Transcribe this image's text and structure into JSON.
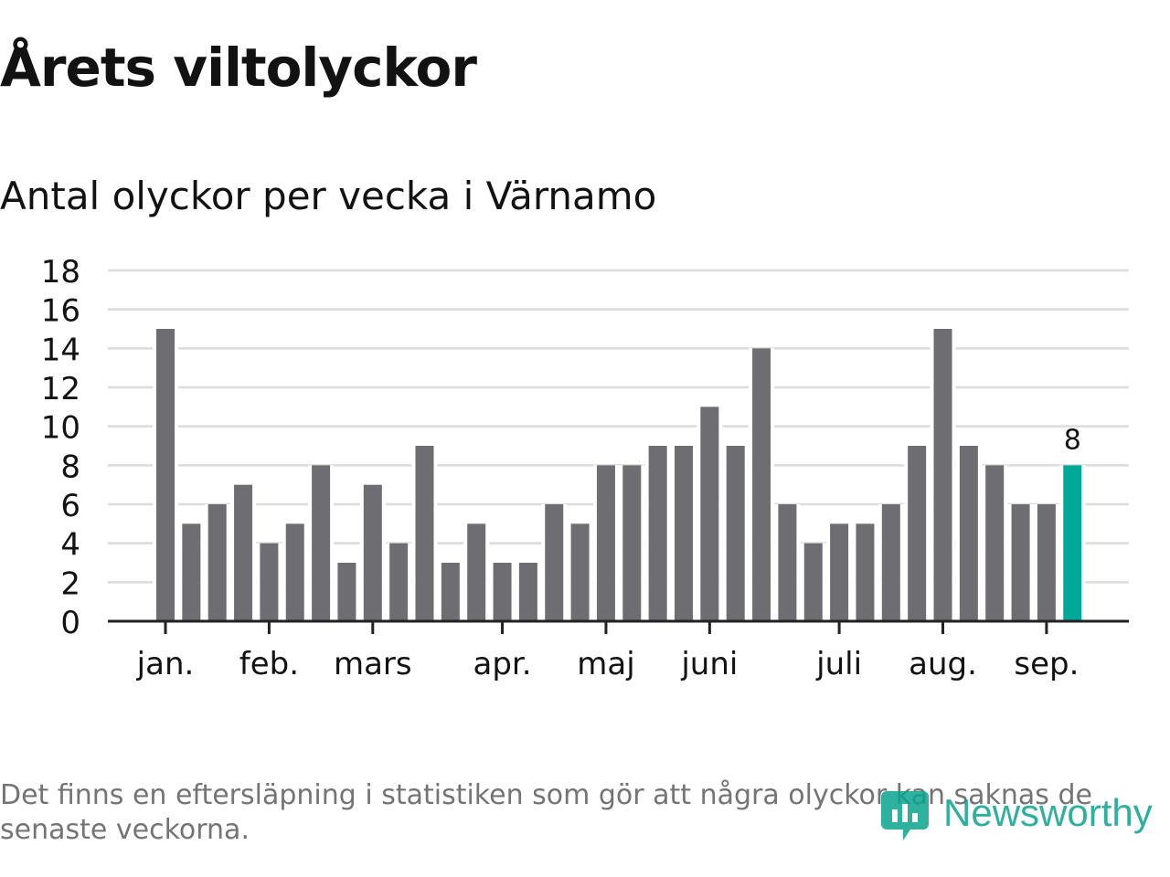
{
  "title": "Årets viltolyckor",
  "subtitle": "Antal olyckor per vecka i Värnamo",
  "footnote": "Det finns en eftersläpning i statistiken som gör att några olyckor kan saknas de senaste veckorna.",
  "logo": {
    "text": "Newsworthy",
    "icon": "newsworthy-logo-icon"
  },
  "colors": {
    "bar": "#6e6d72",
    "highlight": "#00a89a",
    "grid": "#dcdcdc",
    "axis": "#222222",
    "text": "#121212"
  },
  "chart_data": {
    "type": "bar",
    "title": "Antal olyckor per vecka i Värnamo",
    "xlabel": "",
    "ylabel": "",
    "ylim": [
      0,
      18
    ],
    "yticks": [
      0,
      2,
      4,
      6,
      8,
      10,
      12,
      14,
      16,
      18
    ],
    "values": [
      15,
      5,
      6,
      7,
      4,
      5,
      8,
      3,
      7,
      4,
      9,
      3,
      5,
      3,
      3,
      6,
      5,
      8,
      8,
      9,
      9,
      11,
      9,
      14,
      6,
      4,
      5,
      5,
      6,
      9,
      15,
      9,
      8,
      6,
      6,
      8
    ],
    "month_labels": [
      {
        "label": "jan.",
        "bar_index": 0
      },
      {
        "label": "feb.",
        "bar_index": 4
      },
      {
        "label": "mars",
        "bar_index": 8
      },
      {
        "label": "apr.",
        "bar_index": 13
      },
      {
        "label": "maj",
        "bar_index": 17
      },
      {
        "label": "juni",
        "bar_index": 21
      },
      {
        "label": "juli",
        "bar_index": 26
      },
      {
        "label": "aug.",
        "bar_index": 30
      },
      {
        "label": "sep.",
        "bar_index": 34
      }
    ],
    "highlight_index": 35,
    "highlight_label": "8",
    "grid": true,
    "legend": "none"
  }
}
